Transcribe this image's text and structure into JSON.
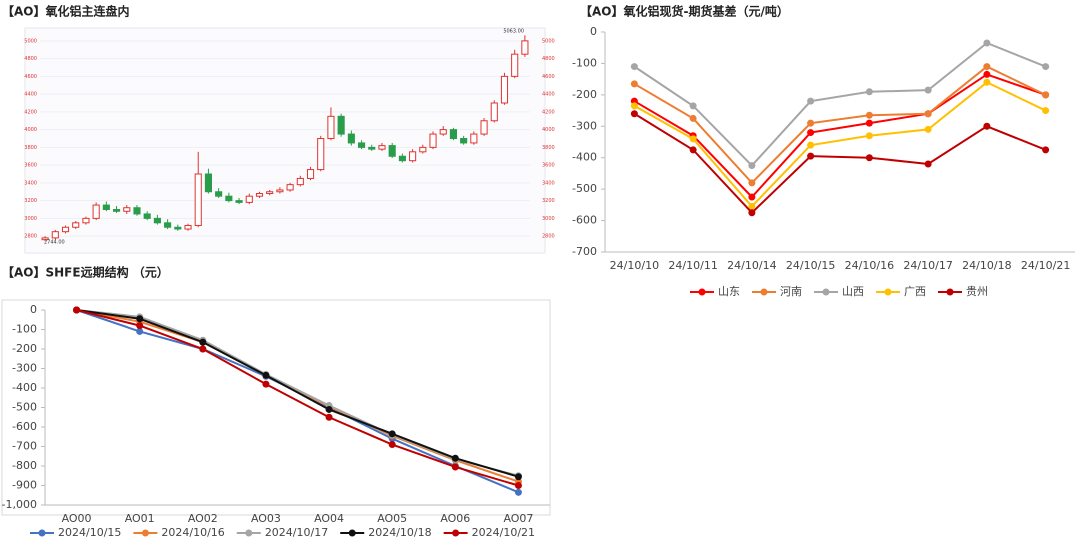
{
  "chart_data": [
    {
      "type": "candlestick",
      "title": "【AO】氧化铝主连盘内",
      "annotations": [
        "5063.00",
        "2744.00"
      ],
      "up_color": "#e0342f",
      "down_color": "#2a9d4a",
      "grid": true,
      "ylim": [
        2700,
        5100
      ],
      "yticks": [
        2800,
        3000,
        3200,
        3400,
        3600,
        3800,
        4000,
        4200,
        4400,
        4600,
        4800,
        5000
      ],
      "open": [
        2760,
        2780,
        2850,
        2900,
        2950,
        3000,
        3150,
        3100,
        3080,
        3120,
        3050,
        3000,
        2950,
        2900,
        2880,
        2920,
        3500,
        3300,
        3250,
        3200,
        3180,
        3250,
        3280,
        3300,
        3320,
        3380,
        3450,
        3550,
        3900,
        4150,
        3950,
        3850,
        3800,
        3780,
        3820,
        3700,
        3650,
        3750,
        3800,
        3950,
        4000,
        3900,
        3850,
        3950,
        4100,
        4300,
        4600,
        4850
      ],
      "high": [
        2800,
        2870,
        2920,
        2970,
        3020,
        3180,
        3190,
        3140,
        3150,
        3150,
        3080,
        3040,
        2990,
        2930,
        2940,
        3750,
        3560,
        3340,
        3290,
        3230,
        3280,
        3300,
        3320,
        3350,
        3400,
        3480,
        3580,
        3930,
        4250,
        4180,
        3990,
        3880,
        3830,
        3850,
        3850,
        3730,
        3780,
        3830,
        3980,
        4040,
        4020,
        3930,
        3980,
        4130,
        4330,
        4640,
        4900,
        5063
      ],
      "low": [
        2744,
        2760,
        2830,
        2880,
        2930,
        2980,
        3080,
        3060,
        3050,
        3030,
        2980,
        2930,
        2880,
        2860,
        2860,
        2900,
        3280,
        3230,
        3180,
        3160,
        3160,
        3230,
        3260,
        3280,
        3300,
        3360,
        3430,
        3530,
        3880,
        3920,
        3820,
        3780,
        3760,
        3760,
        3680,
        3630,
        3630,
        3730,
        3780,
        3930,
        3880,
        3830,
        3830,
        3930,
        4080,
        4280,
        4580,
        4820
      ],
      "close": [
        2780,
        2850,
        2900,
        2950,
        3000,
        3150,
        3100,
        3080,
        3120,
        3050,
        3000,
        2950,
        2900,
        2880,
        2920,
        3500,
        3300,
        3250,
        3200,
        3180,
        3250,
        3280,
        3300,
        3320,
        3380,
        3450,
        3550,
        3900,
        4150,
        3950,
        3850,
        3800,
        3780,
        3820,
        3700,
        3650,
        3750,
        3800,
        3950,
        4000,
        3900,
        3850,
        3950,
        4100,
        4300,
        4600,
        4850,
        5000
      ]
    },
    {
      "type": "line",
      "title": "【AO】氧化铝现货-期货基差（元/吨）",
      "grid": false,
      "legend": "bottom",
      "categories": [
        "24/10/10",
        "24/10/11",
        "24/10/14",
        "24/10/15",
        "24/10/16",
        "24/10/17",
        "24/10/18",
        "24/10/21"
      ],
      "ylim": [
        -700,
        0
      ],
      "yticks": [
        0,
        -100,
        -200,
        -300,
        -400,
        -500,
        -600,
        -700
      ],
      "series": [
        {
          "name": "山东",
          "color": "#ff0000",
          "values": [
            -220,
            -330,
            -525,
            -320,
            -290,
            -260,
            -135,
            -200
          ]
        },
        {
          "name": "河南",
          "color": "#ed7d31",
          "values": [
            -165,
            -275,
            -480,
            -290,
            -265,
            -260,
            -110,
            -200
          ]
        },
        {
          "name": "山西",
          "color": "#a5a5a5",
          "values": [
            -110,
            -235,
            -425,
            -220,
            -190,
            -185,
            -35,
            -110
          ]
        },
        {
          "name": "广西",
          "color": "#ffc000",
          "values": [
            -235,
            -340,
            -555,
            -360,
            -330,
            -310,
            -160,
            -250
          ]
        },
        {
          "name": "贵州",
          "color": "#c00000",
          "values": [
            -260,
            -375,
            -575,
            -395,
            -400,
            -420,
            -300,
            -375
          ]
        }
      ]
    },
    {
      "type": "line",
      "title": "【AO】SHFE远期结构 （元）",
      "grid": false,
      "legend": "bottom",
      "categories": [
        "AO00",
        "AO01",
        "AO02",
        "AO03",
        "AO04",
        "AO05",
        "AO06",
        "AO07"
      ],
      "ylim": [
        -1000,
        0
      ],
      "yticks": [
        0,
        -100,
        -200,
        -300,
        -400,
        -500,
        -600,
        -700,
        -800,
        -900,
        {
          "value": -1000,
          "label": "-1,000"
        }
      ],
      "series": [
        {
          "name": "2024/10/15",
          "color": "#4472c4",
          "values": [
            0,
            -110,
            -200,
            -340,
            -500,
            -660,
            -800,
            -935
          ]
        },
        {
          "name": "2024/10/16",
          "color": "#ed7d31",
          "values": [
            0,
            -60,
            -165,
            -335,
            -495,
            -645,
            -770,
            -880
          ]
        },
        {
          "name": "2024/10/17",
          "color": "#a5a5a5",
          "values": [
            0,
            -35,
            -155,
            -330,
            -490,
            -640,
            -765,
            -850
          ]
        },
        {
          "name": "2024/10/18",
          "color": "#111111",
          "values": [
            0,
            -45,
            -165,
            -335,
            -510,
            -635,
            -760,
            -855
          ]
        },
        {
          "name": "2024/10/21",
          "color": "#c00000",
          "values": [
            0,
            -80,
            -200,
            -380,
            -550,
            -690,
            -805,
            -900
          ]
        }
      ]
    }
  ]
}
